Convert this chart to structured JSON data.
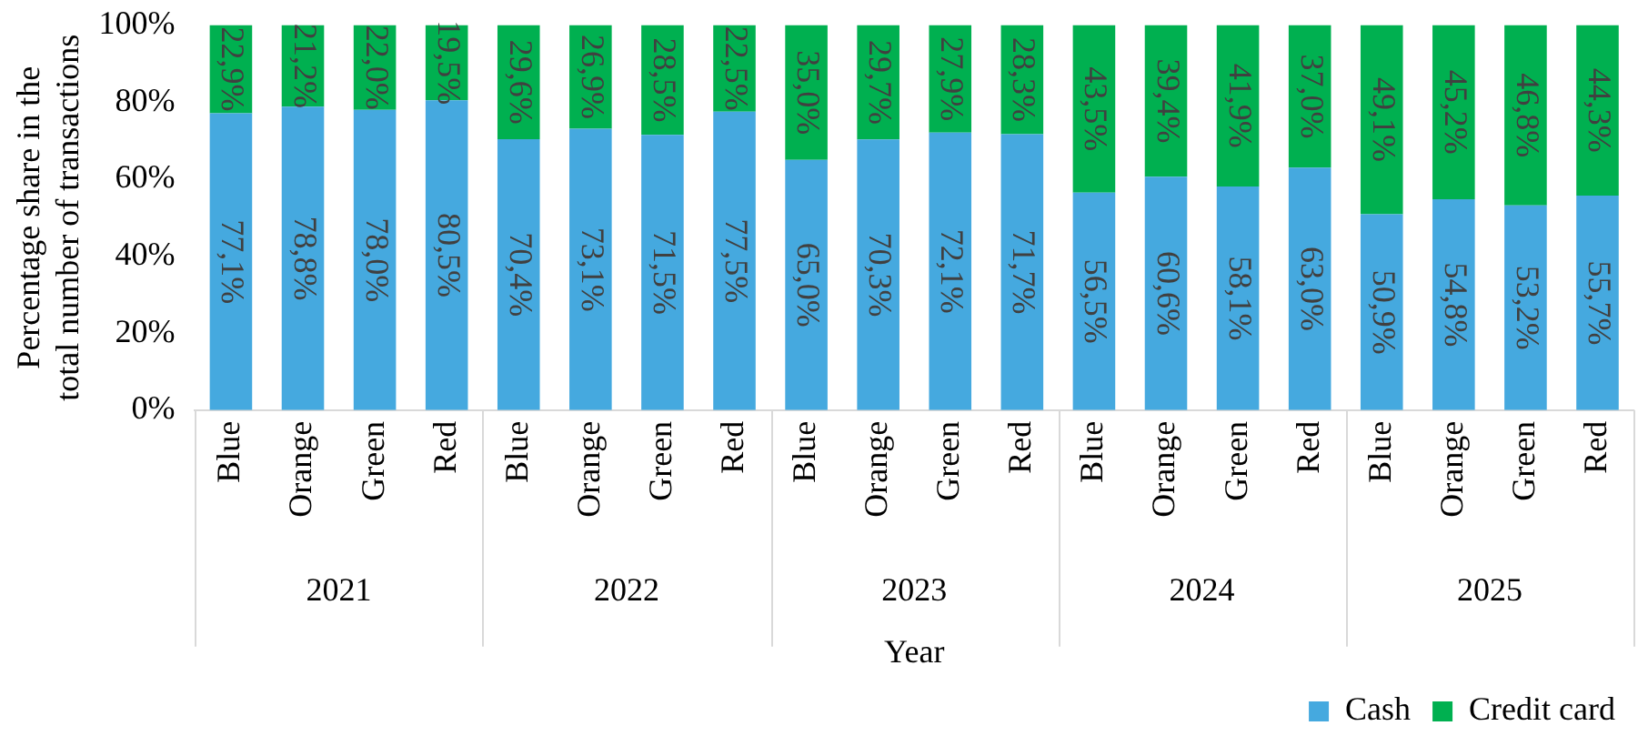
{
  "chart_data": {
    "type": "bar",
    "stacked": true,
    "ylabel": "Percentage share in the total number of transactions",
    "xlabel": "Year",
    "categories": [
      "Blue",
      "Orange",
      "Green",
      "Red",
      "Blue",
      "Orange",
      "Green",
      "Red",
      "Blue",
      "Orange",
      "Green",
      "Red",
      "Blue",
      "Orange",
      "Green",
      "Red",
      "Blue",
      "Orange",
      "Green",
      "Red"
    ],
    "annotations": [
      "2021",
      "2022",
      "2023",
      "2024",
      "2025"
    ],
    "ylim": [
      0,
      100
    ],
    "yticks": [
      {
        "value": 0,
        "label": "0%"
      },
      {
        "value": 20,
        "label": "20%"
      },
      {
        "value": 40,
        "label": "40%"
      },
      {
        "value": 60,
        "label": "60%"
      },
      {
        "value": 80,
        "label": "80%"
      },
      {
        "value": 100,
        "label": "100%"
      }
    ],
    "grid": false,
    "legend": "bottom right",
    "series": [
      {
        "name": "Cash",
        "color": "#45a9df",
        "values": [
          77.1,
          78.8,
          78.0,
          80.5,
          70.4,
          73.1,
          71.5,
          77.5,
          65.0,
          70.3,
          72.1,
          71.7,
          56.5,
          60.6,
          58.1,
          63.0,
          50.9,
          54.8,
          53.2,
          55.7
        ],
        "value_labels": [
          "77,1%",
          "78,8%",
          "78,0%",
          "80,5%",
          "70,4%",
          "73,1%",
          "71,5%",
          "77,5%",
          "65,0%",
          "70,3%",
          "72,1%",
          "71,7%",
          "56,5%",
          "60,6%",
          "58,1%",
          "63,0%",
          "50,9%",
          "54,8%",
          "53,2%",
          "55,7%"
        ]
      },
      {
        "name": "Credit card",
        "color": "#00b050",
        "values": [
          22.9,
          21.2,
          22.0,
          19.5,
          29.6,
          26.9,
          28.5,
          22.5,
          35.0,
          29.7,
          27.9,
          28.3,
          43.5,
          39.4,
          41.9,
          37.0,
          49.1,
          45.2,
          46.8,
          44.3
        ],
        "value_labels": [
          "22,9%",
          "21,2%",
          "22,0%",
          "19,5%",
          "29,6%",
          "26,9%",
          "28,5%",
          "22,5%",
          "35,0%",
          "29,7%",
          "27,9%",
          "28,3%",
          "43,5%",
          "39,4%",
          "41,9%",
          "37,0%",
          "49,1%",
          "45,2%",
          "46,8%",
          "44,3%"
        ]
      }
    ]
  }
}
